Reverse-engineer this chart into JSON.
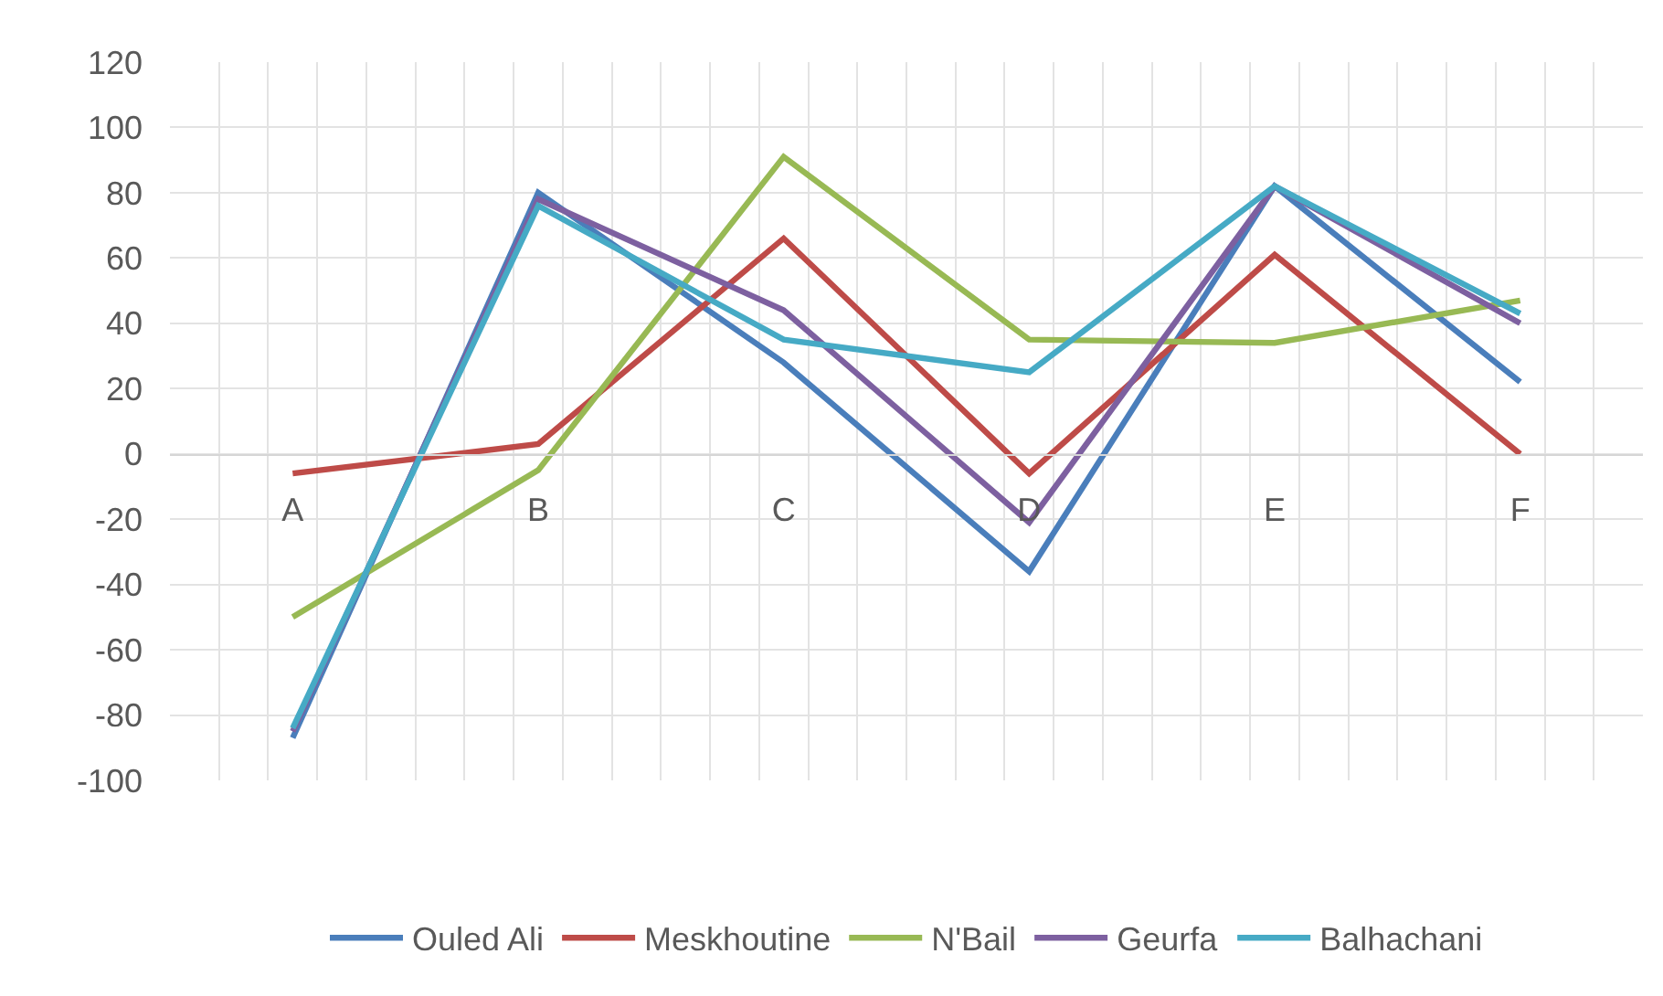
{
  "chart_data": {
    "type": "line",
    "categories": [
      "A",
      "B",
      "C",
      "D",
      "E",
      "F"
    ],
    "series": [
      {
        "name": "Ouled Ali",
        "color": "#4a7ebb",
        "values": [
          -87,
          80,
          28,
          -36,
          82,
          22
        ]
      },
      {
        "name": "Meskhoutine",
        "color": "#be4b48",
        "values": [
          -6,
          3,
          66,
          -6,
          61,
          0
        ]
      },
      {
        "name": "N'Bail",
        "color": "#98b954",
        "values": [
          -50,
          -5,
          91,
          35,
          34,
          47
        ]
      },
      {
        "name": "Geurfa",
        "color": "#7d60a0",
        "values": [
          -85,
          78,
          44,
          -21,
          82,
          40
        ]
      },
      {
        "name": "Balhachani",
        "color": "#46aac5",
        "values": [
          -84,
          76,
          35,
          25,
          82,
          43
        ]
      }
    ],
    "ylim": [
      -100,
      120
    ],
    "yticks": [
      -100,
      -80,
      -60,
      -40,
      -20,
      0,
      20,
      40,
      60,
      80,
      100,
      120
    ],
    "grid": true,
    "legend": "bottom"
  }
}
